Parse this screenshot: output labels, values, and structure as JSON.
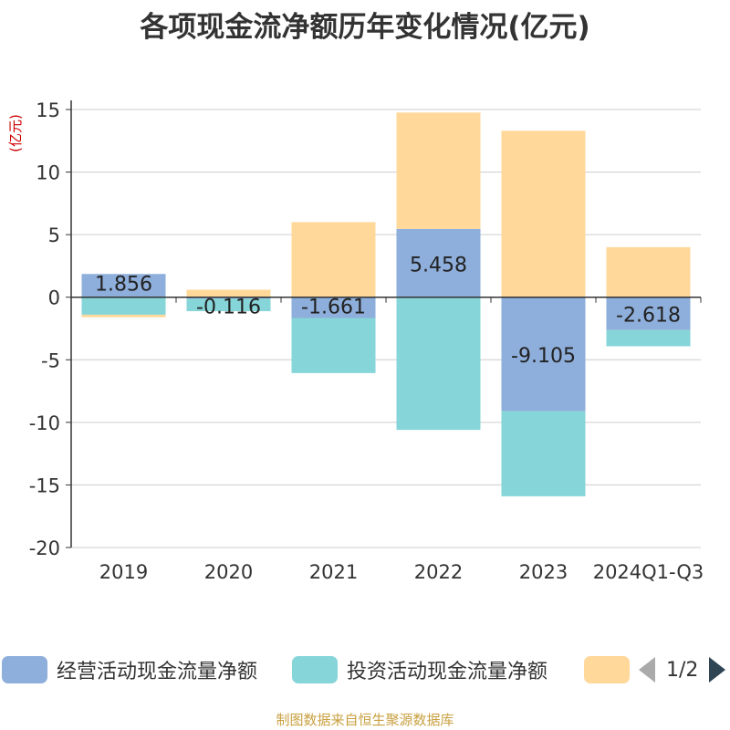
{
  "title": "各项现金流净额历年变化情况(亿元)",
  "source": "制图数据来自恒生聚源数据库",
  "pager": {
    "text": "1/2"
  },
  "colors": {
    "operating": "#8eaedb",
    "investing": "#86d5d8",
    "financing": "#ffd89a",
    "axis": "#333333",
    "grid": "#cccccc",
    "unit": "#cc0000"
  },
  "chart_data": {
    "type": "bar",
    "stacked": true,
    "unit_label": "(亿元)",
    "categories": [
      "2019",
      "2020",
      "2021",
      "2022",
      "2023",
      "2024Q1-Q3"
    ],
    "ylim": [
      -20,
      15
    ],
    "yticks": [
      15,
      10,
      5,
      0,
      -5,
      -10,
      -15,
      -20
    ],
    "grid": true,
    "legend_position": "bottom",
    "series": [
      {
        "name": "经营活动现金流量净额",
        "color_key": "operating",
        "values": [
          1.856,
          -0.116,
          -1.661,
          5.458,
          -9.105,
          -2.618
        ],
        "labels": [
          "1.856",
          "-0.116",
          "-1.661",
          "5.458",
          "-9.105",
          "-2.618"
        ]
      },
      {
        "name": "投资活动现金流量净额",
        "color_key": "investing",
        "values": [
          -1.4,
          -1.0,
          -4.4,
          -10.6,
          -6.8,
          -1.3
        ]
      },
      {
        "name": "",
        "color_key": "financing",
        "values": [
          -0.2,
          0.6,
          6.0,
          9.3,
          13.3,
          4.0
        ]
      }
    ]
  }
}
